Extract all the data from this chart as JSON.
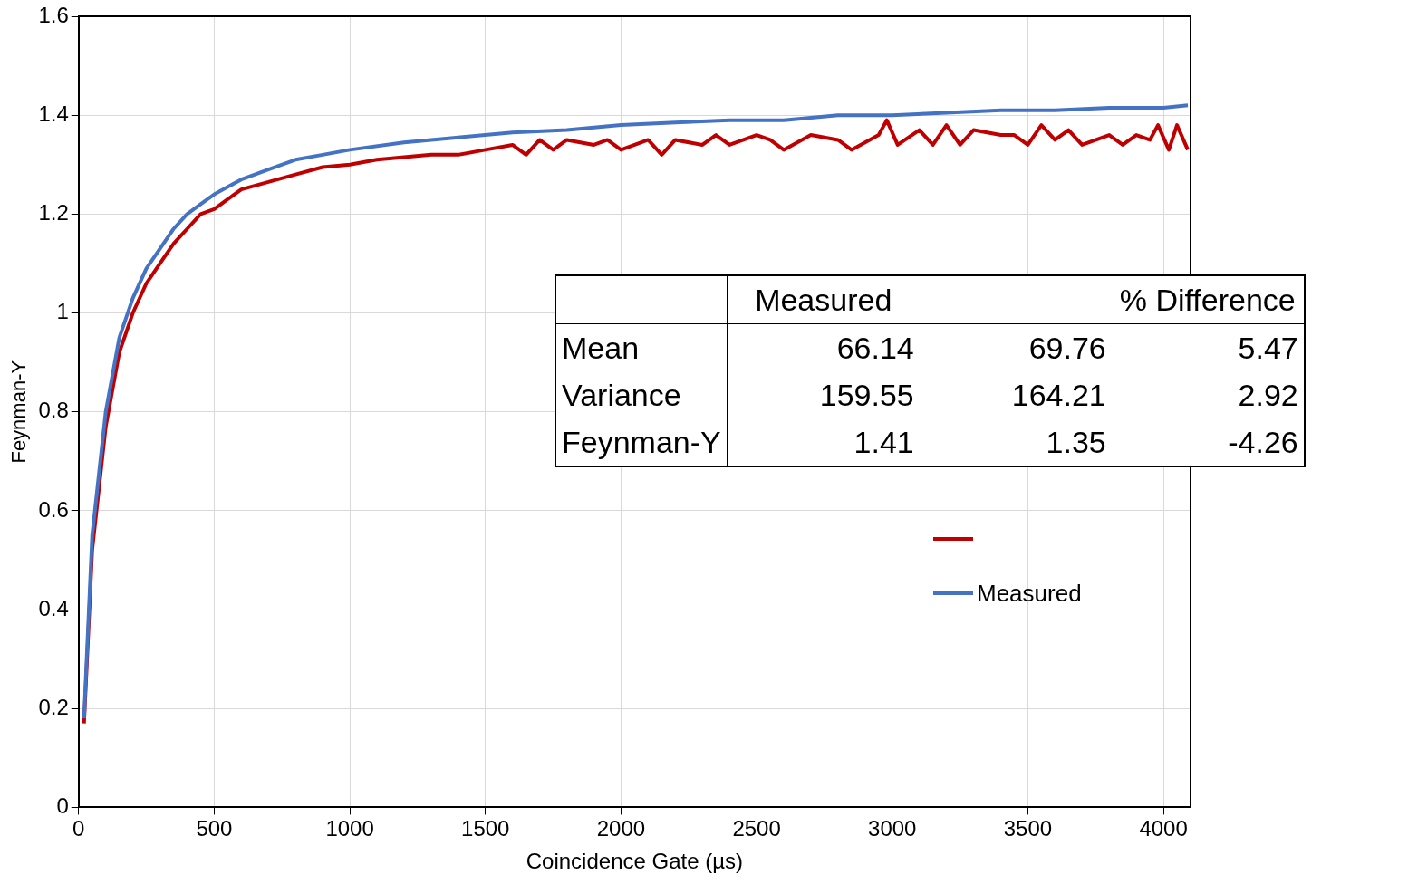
{
  "chart_data": [
    {
      "type": "line",
      "xlabel": "Coincidence Gate (µs)",
      "ylabel": "Feynman-Y",
      "xlim": [
        0,
        4100
      ],
      "xticks": [
        0,
        500,
        1000,
        1500,
        2000,
        2500,
        3000,
        3500,
        4000
      ],
      "ylim": [
        0,
        1.6
      ],
      "yticks": [
        0,
        0.2,
        0.4,
        0.6,
        0.8,
        1,
        1.2,
        1.4,
        1.6
      ],
      "grid": true,
      "legend": "right",
      "marker": "none",
      "line_style": "solid",
      "series": [
        {
          "color": "#c00000",
          "x": [
            20,
            50,
            100,
            150,
            200,
            250,
            300,
            350,
            400,
            450,
            500,
            550,
            600,
            700,
            800,
            900,
            1000,
            1100,
            1200,
            1300,
            1400,
            1500,
            1600,
            1650,
            1700,
            1750,
            1800,
            1900,
            1950,
            2000,
            2100,
            2150,
            2200,
            2300,
            2350,
            2400,
            2500,
            2550,
            2600,
            2700,
            2800,
            2850,
            2950,
            2980,
            3020,
            3100,
            3150,
            3200,
            3250,
            3300,
            3400,
            3450,
            3500,
            3550,
            3600,
            3650,
            3700,
            3800,
            3850,
            3900,
            3950,
            3980,
            4020,
            4050,
            4090
          ],
          "values": [
            0.17,
            0.52,
            0.77,
            0.92,
            1.0,
            1.06,
            1.1,
            1.14,
            1.17,
            1.2,
            1.21,
            1.23,
            1.25,
            1.265,
            1.28,
            1.295,
            1.3,
            1.31,
            1.315,
            1.32,
            1.32,
            1.33,
            1.34,
            1.32,
            1.35,
            1.33,
            1.35,
            1.34,
            1.35,
            1.33,
            1.35,
            1.32,
            1.35,
            1.34,
            1.36,
            1.34,
            1.36,
            1.35,
            1.33,
            1.36,
            1.35,
            1.33,
            1.36,
            1.39,
            1.34,
            1.37,
            1.34,
            1.38,
            1.34,
            1.37,
            1.36,
            1.36,
            1.34,
            1.38,
            1.35,
            1.37,
            1.34,
            1.36,
            1.34,
            1.36,
            1.35,
            1.38,
            1.33,
            1.38,
            1.33
          ]
        },
        {
          "name": "Measured",
          "color": "#4472c4",
          "x": [
            20,
            50,
            100,
            150,
            200,
            250,
            300,
            350,
            400,
            450,
            500,
            600,
            700,
            800,
            900,
            1000,
            1200,
            1400,
            1600,
            1800,
            2000,
            2200,
            2400,
            2600,
            2800,
            3000,
            3200,
            3400,
            3600,
            3800,
            4000,
            4090
          ],
          "values": [
            0.18,
            0.55,
            0.8,
            0.95,
            1.03,
            1.09,
            1.13,
            1.17,
            1.2,
            1.22,
            1.24,
            1.27,
            1.29,
            1.31,
            1.32,
            1.33,
            1.345,
            1.355,
            1.365,
            1.37,
            1.38,
            1.385,
            1.39,
            1.39,
            1.4,
            1.4,
            1.405,
            1.41,
            1.41,
            1.415,
            1.415,
            1.42
          ]
        }
      ]
    },
    {
      "type": "heatmap",
      "categories": [
        "Measured",
        null,
        "% Difference"
      ],
      "y_categories": [
        "Mean",
        "Variance",
        "Feynman-Y"
      ],
      "cells": [
        [
          66.14,
          69.76,
          5.47
        ],
        [
          159.55,
          164.21,
          2.92
        ],
        [
          1.41,
          1.35,
          -4.26
        ]
      ],
      "data_labels": true
    }
  ]
}
